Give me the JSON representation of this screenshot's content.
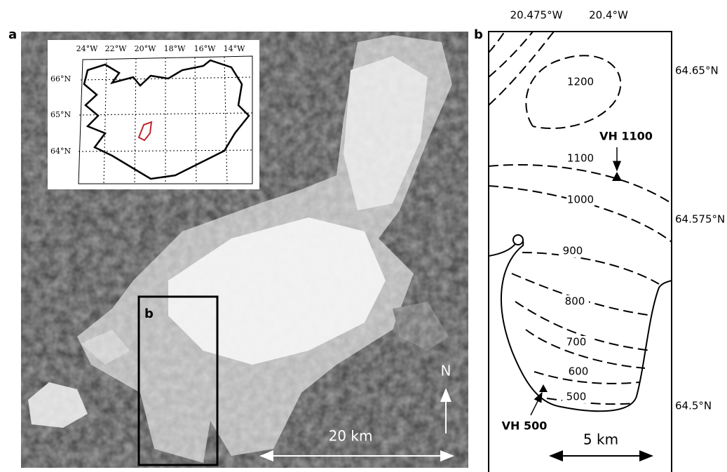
{
  "panel_a": {
    "label": "a",
    "box_label": "b",
    "north": "N",
    "scale": "20 km",
    "inset": {
      "lon_labels": [
        "24°W",
        "22°W",
        "20°W",
        "18°W",
        "16°W",
        "14°W"
      ],
      "lat_labels": [
        "66°N",
        "65°N",
        "64°N"
      ]
    }
  },
  "panel_b": {
    "label": "b",
    "lon_labels": [
      "20.475°W",
      "20.4°W"
    ],
    "lat_labels": [
      "64.65°N",
      "64.575°N",
      "64.5°N"
    ],
    "contour_labels": [
      "1200",
      "1100",
      "1000",
      "900",
      "800",
      "700",
      "600",
      "500"
    ],
    "stations": [
      "VH 1100",
      "VH 500"
    ],
    "scale": "5 km"
  }
}
